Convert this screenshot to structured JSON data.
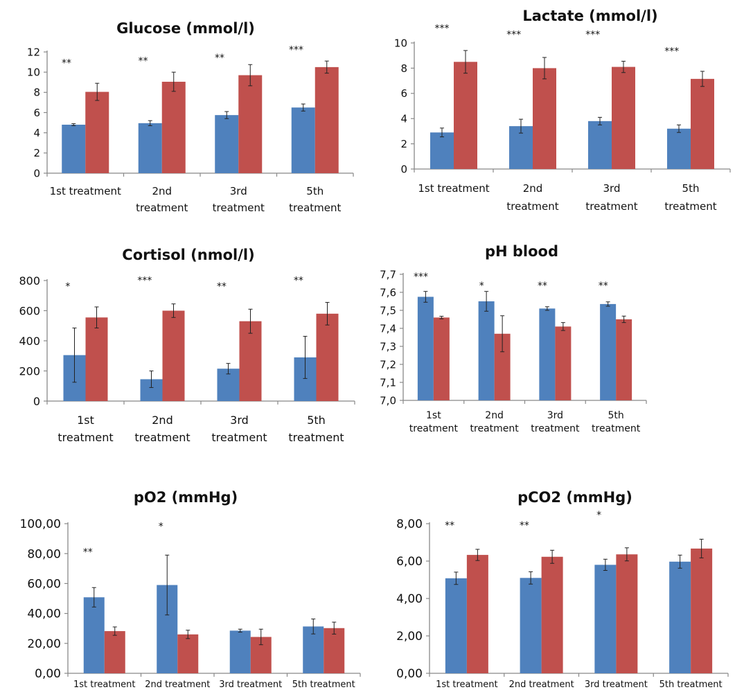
{
  "colors": {
    "series1": "#4f81bd",
    "series2": "#c0504d",
    "axis": "#888888",
    "error": "#222222"
  },
  "chart_data": [
    {
      "type": "bar",
      "title": "Glucose (mmol/l)",
      "categories": [
        [
          "1st treatment"
        ],
        [
          "2nd",
          "treatment"
        ],
        [
          "3rd",
          "treatment"
        ],
        [
          "5th",
          "treatment"
        ]
      ],
      "series": [
        {
          "values": [
            4.8,
            4.95,
            5.75,
            6.5
          ],
          "errors": [
            0.1,
            0.25,
            0.35,
            0.35
          ]
        },
        {
          "values": [
            8.05,
            9.05,
            9.7,
            10.5
          ],
          "errors": [
            0.85,
            0.95,
            1.05,
            0.6
          ]
        }
      ],
      "ylim": [
        0,
        12
      ],
      "yticks": [
        "0",
        "2",
        "4",
        "6",
        "8",
        "10",
        "12"
      ],
      "ytick_values": [
        0,
        2,
        4,
        6,
        8,
        10,
        12
      ],
      "significance": [
        "**",
        "**",
        "**",
        "***"
      ],
      "sig_y": [
        10.6,
        10.8,
        11.1,
        11.9
      ]
    },
    {
      "type": "bar",
      "title": "Lactate (mmol/l)",
      "categories": [
        [
          "1st treatment"
        ],
        [
          "2nd",
          "treatment"
        ],
        [
          "3rd",
          "treatment"
        ],
        [
          "5th",
          "treatment"
        ]
      ],
      "series": [
        {
          "values": [
            2.9,
            3.4,
            3.8,
            3.2
          ],
          "errors": [
            0.35,
            0.55,
            0.3,
            0.3
          ]
        },
        {
          "values": [
            8.5,
            8.0,
            8.1,
            7.15
          ],
          "errors": [
            0.9,
            0.85,
            0.45,
            0.6
          ]
        }
      ],
      "ylim": [
        0,
        10
      ],
      "yticks": [
        "0",
        "2",
        "4",
        "6",
        "8",
        "10"
      ],
      "ytick_values": [
        0,
        2,
        4,
        6,
        8,
        10
      ],
      "significance": [
        "***",
        "***",
        "***",
        "***"
      ],
      "sig_y": [
        10.9,
        10.4,
        10.4,
        9.1
      ],
      "sig_pos": [
        0.5,
        -0.15,
        -0.15,
        -0.15
      ]
    },
    {
      "type": "bar",
      "title": "Cortisol (nmol/l)",
      "categories": [
        [
          "1st",
          "treatment"
        ],
        [
          "2nd",
          "treatment"
        ],
        [
          "3rd",
          "treatment"
        ],
        [
          "5th",
          "treatment"
        ]
      ],
      "series": [
        {
          "values": [
            305,
            145,
            215,
            290
          ],
          "errors": [
            180,
            55,
            35,
            140
          ]
        },
        {
          "values": [
            555,
            600,
            530,
            580
          ],
          "errors": [
            70,
            45,
            80,
            75
          ]
        }
      ],
      "ylim": [
        0,
        800
      ],
      "yticks": [
        "0",
        "200",
        "400",
        "600",
        "800"
      ],
      "ytick_values": [
        0,
        200,
        400,
        600,
        800
      ],
      "significance": [
        "*",
        "***",
        "**",
        "**"
      ],
      "sig_y": [
        740,
        780,
        740,
        780
      ]
    },
    {
      "type": "bar",
      "title": "pH blood",
      "categories": [
        [
          "1st",
          "treatment"
        ],
        [
          "2nd",
          "treatment"
        ],
        [
          "3rd",
          "treatment"
        ],
        [
          "5th",
          "treatment"
        ]
      ],
      "series": [
        {
          "values": [
            7.575,
            7.55,
            7.51,
            7.535
          ],
          "errors": [
            0.03,
            0.055,
            0.01,
            0.012
          ]
        },
        {
          "values": [
            7.46,
            7.37,
            7.41,
            7.45
          ],
          "errors": [
            0.007,
            0.1,
            0.022,
            0.018
          ]
        }
      ],
      "ylim": [
        7.0,
        7.7
      ],
      "yticks": [
        "7,0",
        "7,1",
        "7,2",
        "7,3",
        "7,4",
        "7,5",
        "7,6",
        "7,7"
      ],
      "ytick_values": [
        7.0,
        7.1,
        7.2,
        7.3,
        7.4,
        7.5,
        7.6,
        7.7
      ],
      "significance": [
        "***",
        "*",
        "**",
        "**"
      ],
      "sig_y": [
        7.67,
        7.62,
        7.62,
        7.62
      ]
    },
    {
      "type": "bar",
      "title": "pO2 (mmHg)",
      "categories": [
        [
          "1st treatment"
        ],
        [
          "2nd treatment"
        ],
        [
          "3rd treatment"
        ],
        [
          "5th treatment"
        ]
      ],
      "series": [
        {
          "values": [
            50.8,
            59.0,
            28.5,
            31.3
          ],
          "errors": [
            6.5,
            20.0,
            1.0,
            5.0
          ]
        },
        {
          "values": [
            28.2,
            26.0,
            24.3,
            30.2
          ],
          "errors": [
            2.8,
            2.8,
            5.2,
            4.0
          ]
        }
      ],
      "ylim": [
        0,
        100
      ],
      "yticks": [
        "0,00",
        "20,00",
        "40,00",
        "60,00",
        "80,00",
        "100,00"
      ],
      "ytick_values": [
        0,
        20,
        40,
        60,
        80,
        100
      ],
      "significance": [
        "**",
        "*",
        "",
        ""
      ],
      "sig_y": [
        79,
        96,
        0,
        0
      ]
    },
    {
      "type": "bar",
      "title": "pCO2 (mmHg)",
      "categories": [
        [
          "1st treatment"
        ],
        [
          "2nd treatment"
        ],
        [
          "3rd treatment"
        ],
        [
          "5th treatment"
        ]
      ],
      "series": [
        {
          "values": [
            5.08,
            5.1,
            5.8,
            5.97
          ],
          "errors": [
            0.33,
            0.33,
            0.3,
            0.35
          ]
        },
        {
          "values": [
            6.33,
            6.23,
            6.36,
            6.67
          ],
          "errors": [
            0.3,
            0.35,
            0.35,
            0.5
          ]
        }
      ],
      "ylim": [
        0,
        8
      ],
      "yticks": [
        "0,00",
        "2,00",
        "4,00",
        "6,00",
        "8,00"
      ],
      "ytick_values": [
        0,
        2,
        4,
        6,
        8
      ],
      "significance": [
        "**",
        "**",
        "*",
        ""
      ],
      "sig_y": [
        7.75,
        7.75,
        8.3,
        0
      ]
    }
  ]
}
